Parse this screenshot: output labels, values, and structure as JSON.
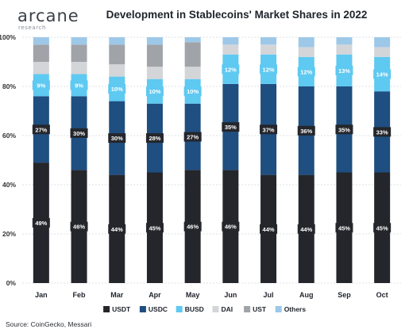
{
  "header": {
    "logo_text": "arcane",
    "logo_subtext": "research",
    "title": "Development in Stablecoins' Market Shares in 2022"
  },
  "footer": {
    "source": "Source: CoinGecko, Messari"
  },
  "colors": {
    "USDT": "#24262b",
    "USDC": "#1f4e80",
    "BUSD": "#5ec9f1",
    "DAI": "#d3d5d9",
    "UST": "#a0a3a8",
    "Others": "#9dc8e8",
    "grid": "#d4d6da",
    "text": "#333333"
  },
  "chart_data": {
    "type": "bar",
    "stacked": true,
    "title": "Development in Stablecoins' Market Shares in 2022",
    "categories": [
      "Jan",
      "Feb",
      "Mar",
      "Apr",
      "May",
      "Jun",
      "Jul",
      "Aug",
      "Sep",
      "Oct"
    ],
    "ylim": [
      0,
      100
    ],
    "yticks": [
      "0%",
      "20%",
      "40%",
      "60%",
      "80%",
      "100%"
    ],
    "grid": true,
    "legend_position": "bottom",
    "series": [
      {
        "name": "USDT",
        "values": [
          49,
          46,
          44,
          45,
          46,
          46,
          44,
          44,
          45,
          45
        ],
        "labels": [
          "49%",
          "46%",
          "44%",
          "45%",
          "46%",
          "46%",
          "44%",
          "44%",
          "45%",
          "45%"
        ]
      },
      {
        "name": "USDC",
        "values": [
          27,
          30,
          30,
          28,
          27,
          35,
          37,
          36,
          35,
          33
        ],
        "labels": [
          "27%",
          "30%",
          "30%",
          "28%",
          "27%",
          "35%",
          "37%",
          "36%",
          "35%",
          "33%"
        ]
      },
      {
        "name": "BUSD",
        "values": [
          9,
          9,
          10,
          10,
          10,
          12,
          12,
          12,
          13,
          14
        ],
        "labels": [
          "9%",
          "9%",
          "10%",
          "10%",
          "10%",
          "12%",
          "12%",
          "12%",
          "13%",
          "14%"
        ]
      },
      {
        "name": "DAI",
        "values": [
          5,
          5,
          5,
          5,
          5,
          4,
          4,
          4,
          4,
          4
        ]
      },
      {
        "name": "UST",
        "values": [
          7,
          7,
          8,
          9,
          10,
          0,
          0,
          0,
          0,
          0
        ]
      },
      {
        "name": "Others",
        "values": [
          3,
          3,
          3,
          3,
          2,
          3,
          3,
          4,
          3,
          4
        ]
      }
    ]
  }
}
